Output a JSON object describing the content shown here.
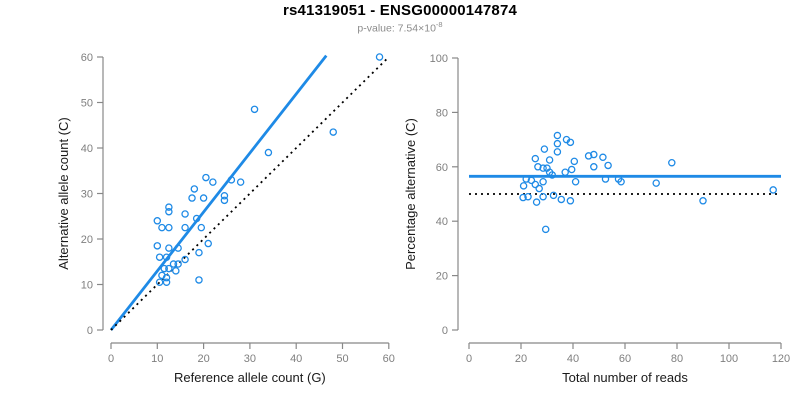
{
  "header": {
    "title": "rs41319051 - ENSG00000147874",
    "pvalue_label": "p-value: 7.54×10",
    "pvalue_exponent": "-8"
  },
  "colors": {
    "point": "#1E8AE6",
    "fit_line": "#1E8AE6",
    "reference_line": "#000000",
    "axis": "#888888",
    "tick_label": "#7f7f7f",
    "axis_title": "#1a1a1a",
    "title": "#000000",
    "subtitle": "#8c8c8c"
  },
  "chart_data": [
    {
      "type": "scatter",
      "name": "allele-counts-panel",
      "xlabel": "Reference allele count (G)",
      "ylabel": "Alternative allele count (C)",
      "xlim": [
        0,
        60
      ],
      "ylim": [
        0,
        60
      ],
      "xticks": [
        0,
        10,
        20,
        30,
        40,
        50,
        60
      ],
      "yticks": [
        0,
        10,
        20,
        30,
        40,
        50,
        60
      ],
      "grid": false,
      "legend": false,
      "points": [
        [
          58,
          60
        ],
        [
          31,
          48.5
        ],
        [
          48,
          43.5
        ],
        [
          34,
          39
        ],
        [
          20.5,
          33.5
        ],
        [
          22,
          32.5
        ],
        [
          26,
          33
        ],
        [
          28,
          32.5
        ],
        [
          18,
          31
        ],
        [
          24.5,
          29.5
        ],
        [
          24.5,
          28.5
        ],
        [
          17.5,
          29
        ],
        [
          20,
          29
        ],
        [
          12.5,
          27
        ],
        [
          12.5,
          26
        ],
        [
          16,
          25.5
        ],
        [
          18.5,
          24.5
        ],
        [
          10,
          24
        ],
        [
          11,
          22.5
        ],
        [
          12.5,
          22.5
        ],
        [
          16,
          22.5
        ],
        [
          19.5,
          22.5
        ],
        [
          10,
          18.5
        ],
        [
          12.5,
          18
        ],
        [
          14.5,
          18
        ],
        [
          21,
          19
        ],
        [
          19,
          17
        ],
        [
          10.5,
          16
        ],
        [
          12,
          16
        ],
        [
          16,
          15.5
        ],
        [
          13.5,
          14.5
        ],
        [
          14.5,
          14.5
        ],
        [
          12.5,
          13.5
        ],
        [
          11.5,
          13.5
        ],
        [
          14,
          13
        ],
        [
          11,
          12
        ],
        [
          12,
          11.5
        ],
        [
          19,
          11
        ],
        [
          10.5,
          10.5
        ],
        [
          12,
          10.5
        ]
      ],
      "lines": [
        {
          "name": "regression-fit-line",
          "style": "solid",
          "x1": 0,
          "y1": 0,
          "x2": 46.5,
          "y2": 60.3
        },
        {
          "name": "identity-reference-line",
          "style": "dotted",
          "x1": 0,
          "y1": 0,
          "x2": 60,
          "y2": 60
        }
      ]
    },
    {
      "type": "scatter",
      "name": "percentage-panel",
      "xlabel": "Total number of reads",
      "ylabel": "Percentage alternative (C)",
      "xlim": [
        0,
        120
      ],
      "ylim": [
        0,
        100
      ],
      "xticks": [
        0,
        20,
        40,
        60,
        80,
        100,
        120
      ],
      "yticks": [
        0,
        20,
        40,
        60,
        80,
        100
      ],
      "grid": false,
      "legend": false,
      "points": [
        [
          34,
          71.5
        ],
        [
          37.5,
          70
        ],
        [
          39,
          69
        ],
        [
          34,
          68.5
        ],
        [
          29,
          66.5
        ],
        [
          34,
          65.5
        ],
        [
          46,
          64
        ],
        [
          48,
          64.5
        ],
        [
          51.5,
          63.5
        ],
        [
          25.5,
          63
        ],
        [
          31,
          62.5
        ],
        [
          40.5,
          62
        ],
        [
          26.5,
          60
        ],
        [
          28.5,
          59.5
        ],
        [
          30,
          59.5
        ],
        [
          48,
          60
        ],
        [
          53.5,
          60.5
        ],
        [
          78,
          61.5
        ],
        [
          31,
          58
        ],
        [
          37,
          58
        ],
        [
          39.5,
          59
        ],
        [
          32,
          57
        ],
        [
          52.5,
          55.5
        ],
        [
          57.5,
          55.5
        ],
        [
          58.5,
          54.5
        ],
        [
          72,
          54
        ],
        [
          41,
          54.5
        ],
        [
          22,
          55.5
        ],
        [
          24,
          55
        ],
        [
          25.5,
          53.5
        ],
        [
          28.5,
          54.5
        ],
        [
          21,
          53
        ],
        [
          27,
          52
        ],
        [
          20.8,
          48.7
        ],
        [
          22.7,
          49
        ],
        [
          26,
          47
        ],
        [
          28.5,
          49
        ],
        [
          32.5,
          49.5
        ],
        [
          35.5,
          48
        ],
        [
          39,
          47.5
        ],
        [
          90,
          47.5
        ],
        [
          117,
          51.5
        ],
        [
          29.5,
          37
        ]
      ],
      "lines": [
        {
          "name": "mean-percentage-line",
          "style": "solid",
          "x1": 0,
          "y1": 56.5,
          "x2": 120,
          "y2": 56.5
        },
        {
          "name": "fifty-percent-reference-line",
          "style": "dotted",
          "x1": 0,
          "y1": 50,
          "x2": 120,
          "y2": 50
        }
      ]
    }
  ]
}
